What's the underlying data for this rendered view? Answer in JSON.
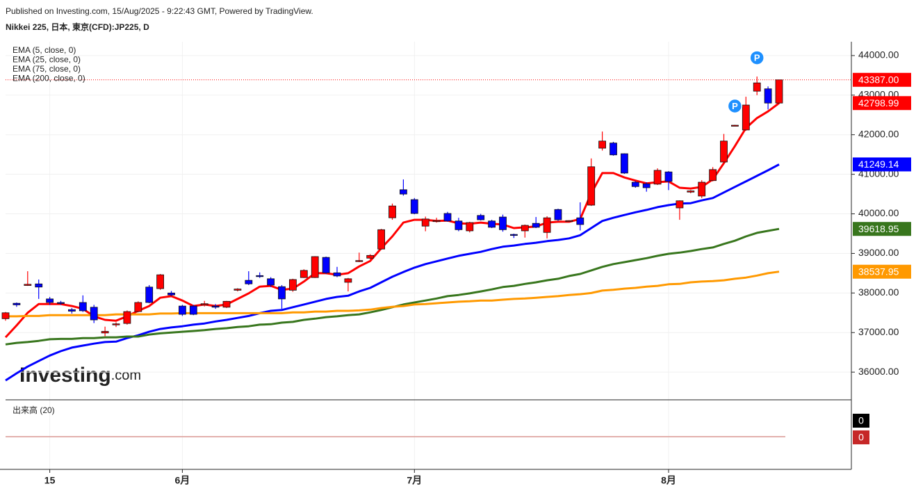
{
  "chart_data": {
    "type": "candlestick",
    "source": "Published on Investing.com, 15/Aug/2025 - 9:22:43 GMT, Powered by TradingView.",
    "title": "Nikkei 225, 日本, 東京(CFD):JP225, D",
    "watermark": [
      "Investing",
      ".com"
    ],
    "categories": [
      null,
      null,
      null,
      null,
      "15",
      null,
      null,
      null,
      null,
      null,
      null,
      null,
      null,
      null,
      null,
      null,
      "6月",
      null,
      null,
      null,
      null,
      null,
      null,
      null,
      null,
      null,
      null,
      null,
      null,
      null,
      null,
      null,
      null,
      null,
      null,
      null,
      null,
      "7月",
      null,
      null,
      null,
      null,
      null,
      null,
      null,
      null,
      null,
      null,
      null,
      null,
      null,
      null,
      null,
      null,
      null,
      null,
      null,
      null,
      null,
      null,
      "8月",
      null,
      null,
      null,
      null,
      null,
      null,
      null,
      null,
      null,
      null
    ],
    "open": [
      37350,
      37740,
      38190,
      38230,
      37850,
      37760,
      37580,
      37760,
      37640,
      36990,
      37200,
      37230,
      37530,
      38150,
      38110,
      38000,
      37670,
      37670,
      37700,
      37670,
      37640,
      38070,
      38320,
      38440,
      38360,
      38160,
      38070,
      38390,
      38390,
      38900,
      38510,
      38270,
      38800,
      38880,
      39110,
      39900,
      40610,
      40360,
      39690,
      39810,
      40010,
      39820,
      39570,
      39960,
      39820,
      39920,
      39480,
      39570,
      39760,
      39530,
      40110,
      39810,
      39900,
      40220,
      41660,
      41790,
      41520,
      40800,
      40760,
      40750,
      41060,
      40150,
      40550,
      40450,
      40840,
      41310,
      42230,
      42120,
      43100,
      43160,
      42800
    ],
    "high": [
      37520,
      37760,
      38550,
      38340,
      37900,
      37800,
      37620,
      37940,
      37700,
      37150,
      37260,
      37560,
      37790,
      38200,
      38480,
      38050,
      37700,
      37700,
      37800,
      37720,
      37800,
      38120,
      38550,
      38520,
      38400,
      38200,
      38360,
      38600,
      38930,
      38920,
      38660,
      38380,
      39020,
      38980,
      39620,
      40260,
      40870,
      40400,
      39930,
      39900,
      40050,
      39900,
      39800,
      40000,
      39850,
      39980,
      39500,
      39730,
      39920,
      39940,
      40130,
      39840,
      40290,
      41400,
      42080,
      41820,
      41530,
      40830,
      40800,
      41150,
      41080,
      40340,
      40600,
      40850,
      41180,
      42020,
      42250,
      42960,
      43470,
      43220,
      43390
    ],
    "low": [
      37300,
      37650,
      38180,
      37850,
      37700,
      37700,
      37480,
      37520,
      37240,
      36910,
      37140,
      37200,
      37510,
      37740,
      38080,
      37920,
      37420,
      37440,
      37660,
      37600,
      37620,
      38040,
      38200,
      38380,
      38150,
      37600,
      38030,
      38380,
      38380,
      38480,
      38400,
      38040,
      38780,
      38850,
      39090,
      39850,
      40460,
      39990,
      39560,
      39780,
      39800,
      39560,
      39530,
      39830,
      39640,
      39550,
      39390,
      39400,
      39640,
      39380,
      39820,
      39800,
      39580,
      40200,
      41600,
      41470,
      41010,
      40660,
      40560,
      40730,
      40600,
      39850,
      40520,
      40400,
      40820,
      41300,
      42210,
      42100,
      43000,
      42640,
      42770
    ],
    "close": [
      37500,
      37700,
      38220,
      38150,
      37760,
      37740,
      37540,
      37550,
      37320,
      37030,
      37220,
      37530,
      37760,
      37760,
      38460,
      37950,
      37460,
      37460,
      37730,
      37640,
      37790,
      38100,
      38230,
      38420,
      38200,
      37850,
      38340,
      38570,
      38920,
      38510,
      38430,
      38360,
      38820,
      38950,
      39600,
      40200,
      40500,
      40010,
      39870,
      39830,
      39820,
      39600,
      39780,
      39850,
      39660,
      39600,
      39460,
      39710,
      39660,
      39900,
      39850,
      39830,
      39730,
      41190,
      41840,
      41490,
      41030,
      40690,
      40660,
      41100,
      40820,
      40330,
      40580,
      40800,
      41120,
      41840,
      42240,
      42750,
      43310,
      42800,
      43387
    ],
    "up_color": "#ff0000",
    "down_color": "#0000ff",
    "last_label": "43387.00",
    "series": [
      {
        "name": "EMA (5, close, 0)",
        "color": "#ff0000",
        "last_label": "42798.99",
        "values": [
          36880,
          37180,
          37500,
          37720,
          37720,
          37720,
          37670,
          37600,
          37410,
          37320,
          37300,
          37410,
          37550,
          37670,
          37880,
          37920,
          37810,
          37670,
          37710,
          37670,
          37710,
          37850,
          37990,
          38160,
          38180,
          38080,
          38110,
          38290,
          38500,
          38500,
          38460,
          38500,
          38670,
          38810,
          39130,
          39430,
          39780,
          39850,
          39850,
          39820,
          39830,
          39760,
          39750,
          39780,
          39750,
          39730,
          39640,
          39660,
          39680,
          39780,
          39800,
          39800,
          39870,
          40520,
          41030,
          41030,
          40920,
          40840,
          40770,
          40800,
          40820,
          40660,
          40640,
          40680,
          40870,
          41280,
          41710,
          42170,
          42420,
          42590,
          42798.99
        ]
      },
      {
        "name": "EMA (25, close, 0)",
        "color": "#0000ff",
        "last_label": "41249.14",
        "values": [
          35790,
          35970,
          36140,
          36280,
          36420,
          36530,
          36620,
          36670,
          36720,
          36760,
          36770,
          36860,
          36930,
          37020,
          37090,
          37130,
          37160,
          37200,
          37230,
          37280,
          37320,
          37370,
          37420,
          37490,
          37550,
          37570,
          37640,
          37710,
          37780,
          37850,
          37900,
          37930,
          38040,
          38130,
          38270,
          38410,
          38530,
          38640,
          38730,
          38800,
          38870,
          38940,
          38990,
          39040,
          39110,
          39170,
          39200,
          39240,
          39270,
          39310,
          39340,
          39380,
          39460,
          39640,
          39820,
          39900,
          39970,
          40040,
          40100,
          40170,
          40220,
          40260,
          40270,
          40340,
          40400,
          40540,
          40680,
          40820,
          40960,
          41100,
          41249.14
        ]
      },
      {
        "name": "EMA (75, close, 0)",
        "color": "#38761d",
        "last_label": "39618.95",
        "values": [
          36700,
          36740,
          36760,
          36790,
          36830,
          36840,
          36840,
          36860,
          36860,
          36880,
          36880,
          36900,
          36900,
          36950,
          36980,
          37000,
          37020,
          37040,
          37060,
          37090,
          37110,
          37140,
          37160,
          37200,
          37210,
          37250,
          37270,
          37320,
          37350,
          37390,
          37410,
          37440,
          37460,
          37510,
          37570,
          37640,
          37710,
          37760,
          37810,
          37860,
          37920,
          37950,
          37990,
          38040,
          38090,
          38150,
          38180,
          38230,
          38270,
          38320,
          38360,
          38430,
          38480,
          38570,
          38660,
          38730,
          38780,
          38830,
          38880,
          38940,
          38990,
          39020,
          39060,
          39110,
          39150,
          39240,
          39320,
          39430,
          39520,
          39570,
          39618.95
        ]
      },
      {
        "name": "EMA (200, close, 0)",
        "color": "#ff9900",
        "last_label": "38537.95",
        "values": [
          37410,
          37410,
          37420,
          37420,
          37440,
          37440,
          37440,
          37440,
          37440,
          37440,
          37460,
          37460,
          37460,
          37460,
          37480,
          37480,
          37490,
          37490,
          37490,
          37490,
          37490,
          37490,
          37490,
          37490,
          37490,
          37490,
          37510,
          37510,
          37530,
          37530,
          37550,
          37550,
          37560,
          37580,
          37620,
          37650,
          37670,
          37710,
          37720,
          37740,
          37760,
          37780,
          37790,
          37810,
          37810,
          37830,
          37850,
          37860,
          37880,
          37900,
          37920,
          37950,
          37970,
          38000,
          38060,
          38080,
          38110,
          38130,
          38160,
          38180,
          38220,
          38230,
          38270,
          38290,
          38300,
          38320,
          38360,
          38390,
          38440,
          38500,
          38537.95
        ]
      }
    ],
    "ylim": [
      35300,
      44350
    ],
    "yticks": [
      {
        "value": 36000,
        "label": "36000.00"
      },
      {
        "value": 37000,
        "label": "37000.00"
      },
      {
        "value": 38000,
        "label": "38000.00"
      },
      {
        "value": 39000,
        "label": "39000.00"
      },
      {
        "value": 40000,
        "label": "40000.00"
      },
      {
        "value": 41000,
        "label": "41000.00"
      },
      {
        "value": 42000,
        "label": "42000.00"
      },
      {
        "value": 43000,
        "label": "43000.00"
      },
      {
        "value": 44000,
        "label": "44000.00"
      }
    ],
    "grid": true,
    "event_markers": [
      {
        "at": 66,
        "label": "P"
      },
      {
        "at": 68,
        "label": "P"
      }
    ],
    "volume": {
      "title": "出来高 (20)",
      "values": [
        0,
        0
      ],
      "colors": [
        "#000000",
        "#c62828"
      ]
    }
  }
}
